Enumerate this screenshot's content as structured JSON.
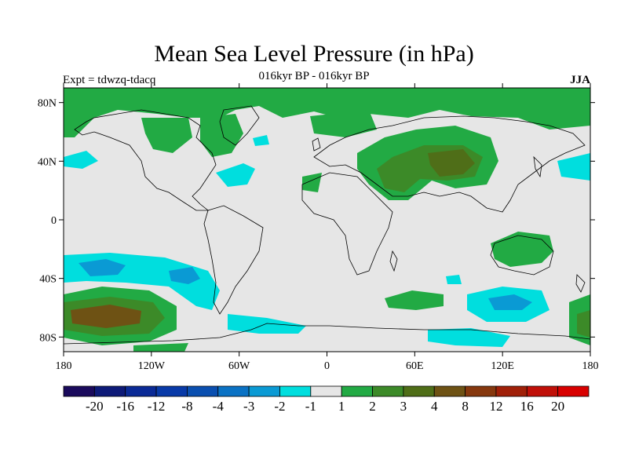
{
  "title": "Mean Sea Level Pressure (in hPa)",
  "subtitle": "016kyr BP - 016kyr BP",
  "left_label": "Expt = tdwzq-tdacq",
  "right_label": "JJA",
  "lat_labels": [
    {
      "lat": 80,
      "text": "80N"
    },
    {
      "lat": 40,
      "text": "40N"
    },
    {
      "lat": 0,
      "text": "0"
    },
    {
      "lat": -40,
      "text": "40S"
    },
    {
      "lat": -80,
      "text": "80S"
    }
  ],
  "lon_labels": [
    {
      "lon": -180,
      "text": "180"
    },
    {
      "lon": -120,
      "text": "120W"
    },
    {
      "lon": -60,
      "text": "60W"
    },
    {
      "lon": 0,
      "text": "0"
    },
    {
      "lon": 60,
      "text": "60E"
    },
    {
      "lon": 120,
      "text": "120E"
    },
    {
      "lon": 180,
      "text": "180"
    }
  ],
  "colorbar": {
    "colors": [
      "#1a0a5c",
      "#0d1a78",
      "#0a2a96",
      "#083aa8",
      "#0a4fb0",
      "#0a72c4",
      "#0a9ad4",
      "#00dede",
      "#e6e6e6",
      "#22aa44",
      "#3c8a28",
      "#4f6e18",
      "#6e5214",
      "#86380e",
      "#a02008",
      "#c01008",
      "#d80000"
    ],
    "labels": [
      "-20",
      "-16",
      "-12",
      "-8",
      "-4",
      "-3",
      "-2",
      "-1",
      "1",
      "2",
      "3",
      "4",
      "8",
      "12",
      "16",
      "20"
    ]
  },
  "colors": {
    "land_no_change": "#e6e6e6",
    "coast": "#000000"
  }
}
